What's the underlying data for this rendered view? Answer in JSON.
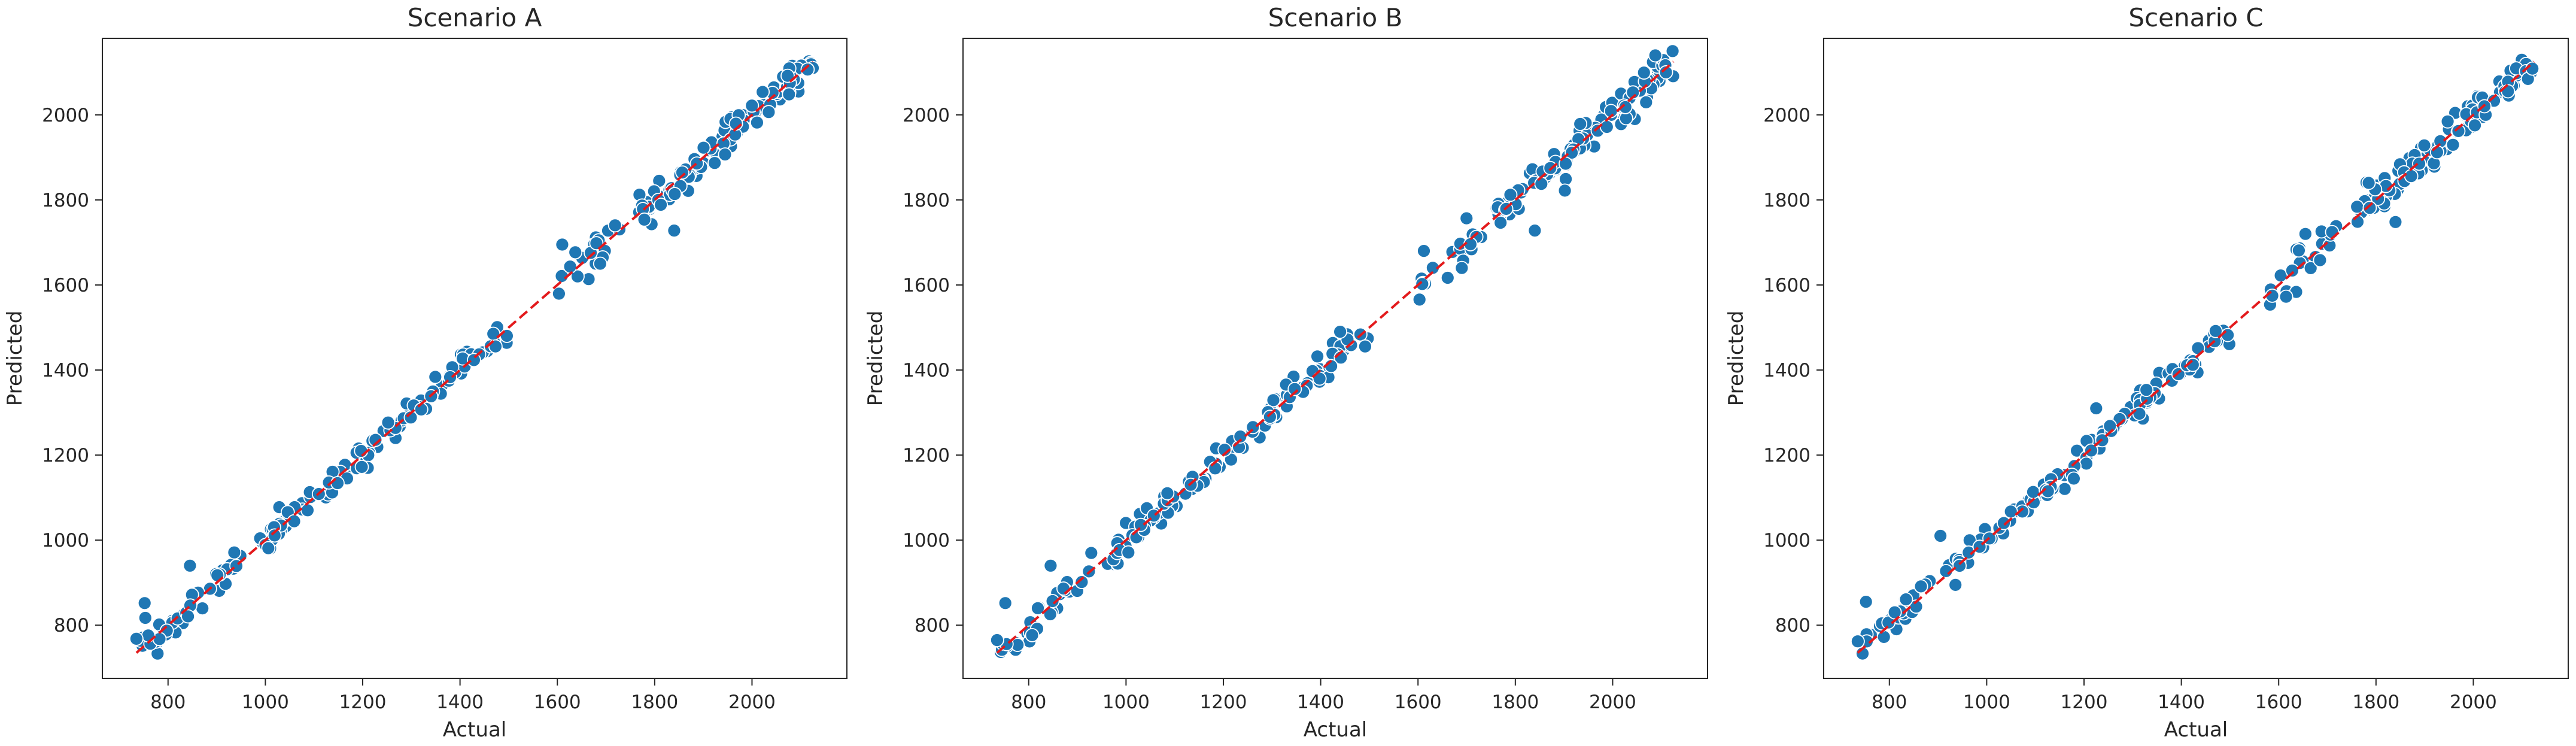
{
  "chart_data": [
    {
      "type": "scatter",
      "title": "Scenario A",
      "xlabel": "Actual",
      "ylabel": "Predicted",
      "xlim": [
        665,
        2195
      ],
      "ylim": [
        675,
        2180
      ],
      "xticks": [
        800,
        1000,
        1200,
        1400,
        1600,
        1800,
        2000
      ],
      "yticks": [
        800,
        1000,
        1200,
        1400,
        1600,
        1800,
        2000
      ],
      "reference_line": {
        "style": "dashed",
        "color": "#e31a1c",
        "from": [
          735,
          735
        ],
        "to": [
          2125,
          2125
        ]
      },
      "marker_color": "#1f77b4",
      "seed": 11,
      "clusters": [
        {
          "from": 735,
          "to": 1000,
          "n": 45,
          "noise": 18
        },
        {
          "from": 1000,
          "to": 1500,
          "n": 110,
          "noise": 16
        },
        {
          "from": 1600,
          "to": 1730,
          "n": 18,
          "noise": 22
        },
        {
          "from": 1760,
          "to": 2125,
          "n": 115,
          "noise": 22
        }
      ],
      "outliers": [
        [
          735,
          768
        ],
        [
          752,
          852
        ],
        [
          845,
          940
        ],
        [
          1610,
          1695
        ],
        [
          1840,
          1728
        ],
        [
          1688,
          1650
        ]
      ]
    },
    {
      "type": "scatter",
      "title": "Scenario B",
      "xlabel": "Actual",
      "ylabel": "Predicted",
      "xlim": [
        665,
        2195
      ],
      "ylim": [
        675,
        2180
      ],
      "xticks": [
        800,
        1000,
        1200,
        1400,
        1600,
        1800,
        2000
      ],
      "yticks": [
        800,
        1000,
        1200,
        1400,
        1600,
        1800,
        2000
      ],
      "reference_line": {
        "style": "dashed",
        "color": "#e31a1c",
        "from": [
          735,
          735
        ],
        "to": [
          2125,
          2125
        ]
      },
      "marker_color": "#1f77b4",
      "seed": 23,
      "clusters": [
        {
          "from": 735,
          "to": 1000,
          "n": 45,
          "noise": 18
        },
        {
          "from": 1000,
          "to": 1500,
          "n": 110,
          "noise": 16
        },
        {
          "from": 1600,
          "to": 1730,
          "n": 18,
          "noise": 22
        },
        {
          "from": 1760,
          "to": 2125,
          "n": 115,
          "noise": 22
        }
      ],
      "outliers": [
        [
          735,
          765
        ],
        [
          752,
          852
        ],
        [
          845,
          940
        ],
        [
          1612,
          1680
        ],
        [
          1840,
          1728
        ],
        [
          1690,
          1640
        ],
        [
          1440,
          1490
        ]
      ]
    },
    {
      "type": "scatter",
      "title": "Scenario C",
      "xlabel": "Actual",
      "ylabel": "Predicted",
      "xlim": [
        665,
        2195
      ],
      "ylim": [
        675,
        2180
      ],
      "xticks": [
        800,
        1000,
        1200,
        1400,
        1600,
        1800,
        2000
      ],
      "yticks": [
        800,
        1000,
        1200,
        1400,
        1600,
        1800,
        2000
      ],
      "reference_line": {
        "style": "dashed",
        "color": "#e31a1c",
        "from": [
          735,
          735
        ],
        "to": [
          2125,
          2125
        ]
      },
      "marker_color": "#1f77b4",
      "seed": 37,
      "clusters": [
        {
          "from": 735,
          "to": 1000,
          "n": 45,
          "noise": 20
        },
        {
          "from": 1000,
          "to": 1500,
          "n": 110,
          "noise": 16
        },
        {
          "from": 1570,
          "to": 1730,
          "n": 22,
          "noise": 22
        },
        {
          "from": 1760,
          "to": 2125,
          "n": 115,
          "noise": 20
        }
      ],
      "outliers": [
        [
          735,
          762
        ],
        [
          752,
          855
        ],
        [
          905,
          1010
        ],
        [
          1225,
          1310
        ],
        [
          1655,
          1720
        ],
        [
          1840,
          1748
        ],
        [
          1785,
          1840
        ]
      ]
    }
  ]
}
